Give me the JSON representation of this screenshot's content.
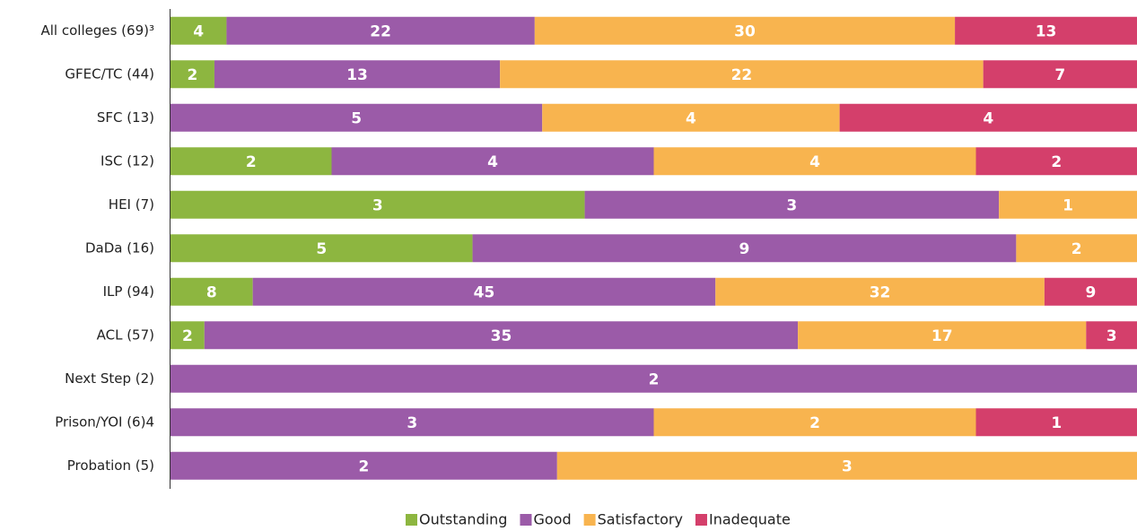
{
  "chart_data": {
    "type": "bar",
    "orientation": "horizontal",
    "stacking": "percent",
    "categories": [
      "All colleges (69)³",
      "GFEC/TC (44)",
      "SFC (13)",
      "ISC (12)",
      "HEI (7)",
      "DaDa (16)",
      "ILP (94)",
      "ACL (57)",
      "Next Step (2)",
      "Prison/YOI (6)4",
      "Probation (5)"
    ],
    "series": [
      {
        "name": "Outstanding",
        "color": "#8db640",
        "values": [
          4,
          2,
          null,
          2,
          3,
          5,
          8,
          2,
          null,
          null,
          null
        ]
      },
      {
        "name": "Good",
        "color": "#9b5ba8",
        "values": [
          22,
          13,
          5,
          4,
          3,
          9,
          45,
          35,
          2,
          3,
          2
        ]
      },
      {
        "name": "Satisfactory",
        "color": "#f8b44f",
        "values": [
          30,
          22,
          4,
          4,
          1,
          2,
          32,
          17,
          null,
          2,
          3
        ]
      },
      {
        "name": "Inadequate",
        "color": "#d43f6b",
        "values": [
          13,
          7,
          4,
          2,
          null,
          null,
          9,
          3,
          null,
          1,
          null
        ]
      }
    ],
    "legend": "bottom"
  }
}
